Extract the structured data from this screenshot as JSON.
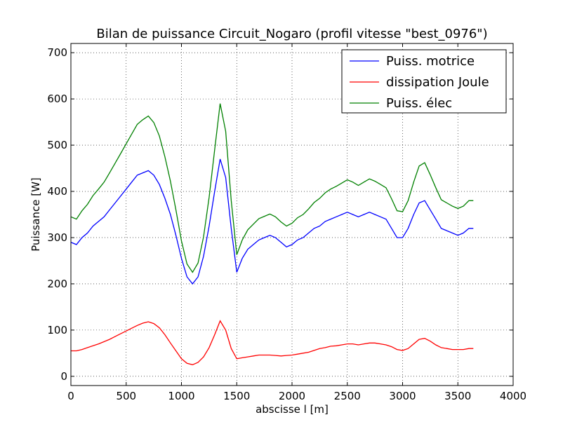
{
  "chart_data": {
    "type": "line",
    "title": "Bilan de puissance Circuit_Nogaro  (profil vitesse \"best_0976\")",
    "xlabel": "abscisse l [m]",
    "ylabel": "Puissance [W]",
    "xlim": [
      0,
      4000
    ],
    "ylim": [
      -20,
      720
    ],
    "xticks": [
      0,
      500,
      1000,
      1500,
      2000,
      2500,
      3000,
      3500,
      4000
    ],
    "yticks": [
      0,
      100,
      200,
      300,
      400,
      500,
      600,
      700
    ],
    "grid": true,
    "legend_position": "top-right",
    "series": [
      {
        "name": "Puiss. motrice",
        "color": "#0000ff",
        "x": [
          0,
          50,
          100,
          150,
          200,
          250,
          300,
          350,
          400,
          450,
          500,
          550,
          600,
          650,
          700,
          750,
          800,
          850,
          900,
          950,
          1000,
          1050,
          1100,
          1150,
          1200,
          1250,
          1300,
          1350,
          1400,
          1450,
          1500,
          1550,
          1600,
          1650,
          1700,
          1750,
          1800,
          1850,
          1900,
          1950,
          2000,
          2050,
          2100,
          2150,
          2200,
          2250,
          2300,
          2350,
          2400,
          2450,
          2500,
          2550,
          2600,
          2650,
          2700,
          2750,
          2800,
          2850,
          2900,
          2950,
          3000,
          3050,
          3100,
          3150,
          3200,
          3250,
          3300,
          3350,
          3400,
          3450,
          3500,
          3550,
          3600,
          3640
        ],
        "y": [
          290,
          285,
          300,
          310,
          325,
          335,
          345,
          360,
          375,
          390,
          405,
          420,
          435,
          440,
          445,
          435,
          415,
          385,
          350,
          305,
          255,
          215,
          200,
          215,
          260,
          325,
          400,
          470,
          430,
          320,
          225,
          255,
          275,
          285,
          295,
          300,
          305,
          300,
          290,
          280,
          285,
          295,
          300,
          310,
          320,
          325,
          335,
          340,
          345,
          350,
          355,
          350,
          345,
          350,
          355,
          350,
          345,
          340,
          320,
          300,
          300,
          320,
          350,
          375,
          380,
          360,
          340,
          320,
          315,
          310,
          305,
          310,
          320,
          320
        ]
      },
      {
        "name": "dissipation Joule",
        "color": "#ff0000",
        "x": [
          0,
          50,
          100,
          150,
          200,
          250,
          300,
          350,
          400,
          450,
          500,
          550,
          600,
          650,
          700,
          750,
          800,
          850,
          900,
          950,
          1000,
          1050,
          1100,
          1150,
          1200,
          1250,
          1300,
          1350,
          1400,
          1450,
          1500,
          1550,
          1600,
          1650,
          1700,
          1750,
          1800,
          1850,
          1900,
          1950,
          2000,
          2050,
          2100,
          2150,
          2200,
          2250,
          2300,
          2350,
          2400,
          2450,
          2500,
          2550,
          2600,
          2650,
          2700,
          2750,
          2800,
          2850,
          2900,
          2950,
          3000,
          3050,
          3100,
          3150,
          3200,
          3250,
          3300,
          3350,
          3400,
          3450,
          3500,
          3550,
          3600,
          3640
        ],
        "y": [
          55,
          55,
          58,
          62,
          66,
          70,
          75,
          80,
          86,
          92,
          98,
          104,
          110,
          115,
          118,
          114,
          105,
          90,
          72,
          55,
          38,
          28,
          25,
          30,
          42,
          62,
          90,
          120,
          100,
          60,
          38,
          40,
          42,
          44,
          46,
          46,
          46,
          45,
          44,
          45,
          46,
          48,
          50,
          52,
          56,
          60,
          62,
          65,
          66,
          68,
          70,
          70,
          68,
          70,
          72,
          72,
          70,
          68,
          64,
          58,
          56,
          60,
          70,
          80,
          82,
          76,
          68,
          62,
          60,
          58,
          58,
          58,
          60,
          60
        ]
      },
      {
        "name": "Puiss. élec",
        "color": "#008000",
        "x": [
          0,
          50,
          100,
          150,
          200,
          250,
          300,
          350,
          400,
          450,
          500,
          550,
          600,
          650,
          700,
          750,
          800,
          850,
          900,
          950,
          1000,
          1050,
          1100,
          1150,
          1200,
          1250,
          1300,
          1350,
          1400,
          1450,
          1500,
          1550,
          1600,
          1650,
          1700,
          1750,
          1800,
          1850,
          1900,
          1950,
          2000,
          2050,
          2100,
          2150,
          2200,
          2250,
          2300,
          2350,
          2400,
          2450,
          2500,
          2550,
          2600,
          2650,
          2700,
          2750,
          2800,
          2850,
          2900,
          2950,
          3000,
          3050,
          3100,
          3150,
          3200,
          3250,
          3300,
          3350,
          3400,
          3450,
          3500,
          3550,
          3600,
          3640
        ],
        "y": [
          345,
          340,
          358,
          372,
          391,
          405,
          420,
          440,
          461,
          482,
          503,
          524,
          545,
          555,
          563,
          549,
          520,
          475,
          422,
          360,
          293,
          243,
          225,
          245,
          302,
          387,
          490,
          590,
          530,
          380,
          263,
          295,
          317,
          329,
          341,
          346,
          351,
          345,
          334,
          325,
          331,
          343,
          350,
          362,
          376,
          385,
          397,
          405,
          411,
          418,
          425,
          420,
          413,
          420,
          427,
          422,
          415,
          408,
          384,
          358,
          356,
          380,
          420,
          455,
          462,
          436,
          408,
          382,
          375,
          368,
          363,
          368,
          380,
          380
        ]
      }
    ]
  }
}
